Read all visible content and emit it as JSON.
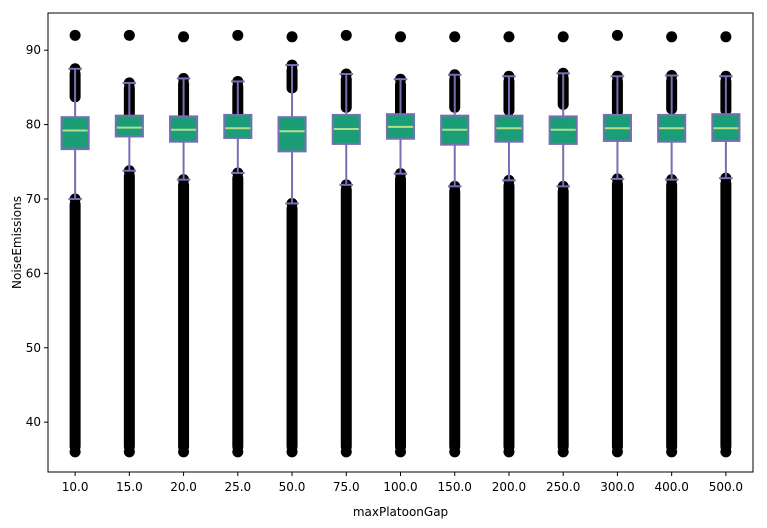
{
  "chart_data": {
    "type": "box",
    "xlabel": "maxPlatoonGap",
    "ylabel": "NoiseEmissions",
    "ylim": [
      33.3,
      95.0
    ],
    "yticks": [
      40,
      50,
      60,
      70,
      80,
      90
    ],
    "categories": [
      "10.0",
      "15.0",
      "20.0",
      "25.0",
      "50.0",
      "75.0",
      "100.0",
      "150.0",
      "200.0",
      "250.0",
      "300.0",
      "400.0",
      "500.0"
    ],
    "boxes": [
      {
        "whislo": 70.0,
        "q1": 76.7,
        "med": 79.2,
        "q3": 81.0,
        "whishi": 87.5,
        "flier_min": 36.0,
        "flier_max": 92.0
      },
      {
        "whislo": 73.8,
        "q1": 78.4,
        "med": 79.6,
        "q3": 81.2,
        "whishi": 85.6,
        "flier_min": 36.0,
        "flier_max": 92.0
      },
      {
        "whislo": 72.6,
        "q1": 77.7,
        "med": 79.3,
        "q3": 81.1,
        "whishi": 86.2,
        "flier_min": 36.0,
        "flier_max": 91.8
      },
      {
        "whislo": 73.5,
        "q1": 78.2,
        "med": 79.5,
        "q3": 81.3,
        "whishi": 85.8,
        "flier_min": 36.0,
        "flier_max": 92.0
      },
      {
        "whislo": 69.4,
        "q1": 76.4,
        "med": 79.1,
        "q3": 81.0,
        "whishi": 88.0,
        "flier_min": 36.0,
        "flier_max": 91.8
      },
      {
        "whislo": 71.9,
        "q1": 77.4,
        "med": 79.4,
        "q3": 81.3,
        "whishi": 86.8,
        "flier_min": 36.0,
        "flier_max": 92.0
      },
      {
        "whislo": 73.4,
        "q1": 78.1,
        "med": 79.7,
        "q3": 81.4,
        "whishi": 86.1,
        "flier_min": 36.0,
        "flier_max": 91.8
      },
      {
        "whislo": 71.7,
        "q1": 77.3,
        "med": 79.3,
        "q3": 81.2,
        "whishi": 86.7,
        "flier_min": 36.0,
        "flier_max": 91.8
      },
      {
        "whislo": 72.5,
        "q1": 77.7,
        "med": 79.5,
        "q3": 81.2,
        "whishi": 86.5,
        "flier_min": 36.0,
        "flier_max": 91.8
      },
      {
        "whislo": 71.7,
        "q1": 77.4,
        "med": 79.3,
        "q3": 81.1,
        "whishi": 86.9,
        "flier_min": 36.0,
        "flier_max": 91.8
      },
      {
        "whislo": 72.7,
        "q1": 77.8,
        "med": 79.5,
        "q3": 81.3,
        "whishi": 86.5,
        "flier_min": 36.0,
        "flier_max": 92.0
      },
      {
        "whislo": 72.6,
        "q1": 77.7,
        "med": 79.5,
        "q3": 81.3,
        "whishi": 86.6,
        "flier_min": 36.0,
        "flier_max": 91.8
      },
      {
        "whislo": 72.8,
        "q1": 77.8,
        "med": 79.5,
        "q3": 81.4,
        "whishi": 86.5,
        "flier_min": 36.0,
        "flier_max": 91.8
      }
    ],
    "colors": {
      "box_fill": "#1b9e77",
      "box_edge": "#7570b3",
      "whisker": "#7570b3",
      "median": "#b2df8a",
      "flier": "#000000"
    },
    "grid": false,
    "legend": "none"
  }
}
